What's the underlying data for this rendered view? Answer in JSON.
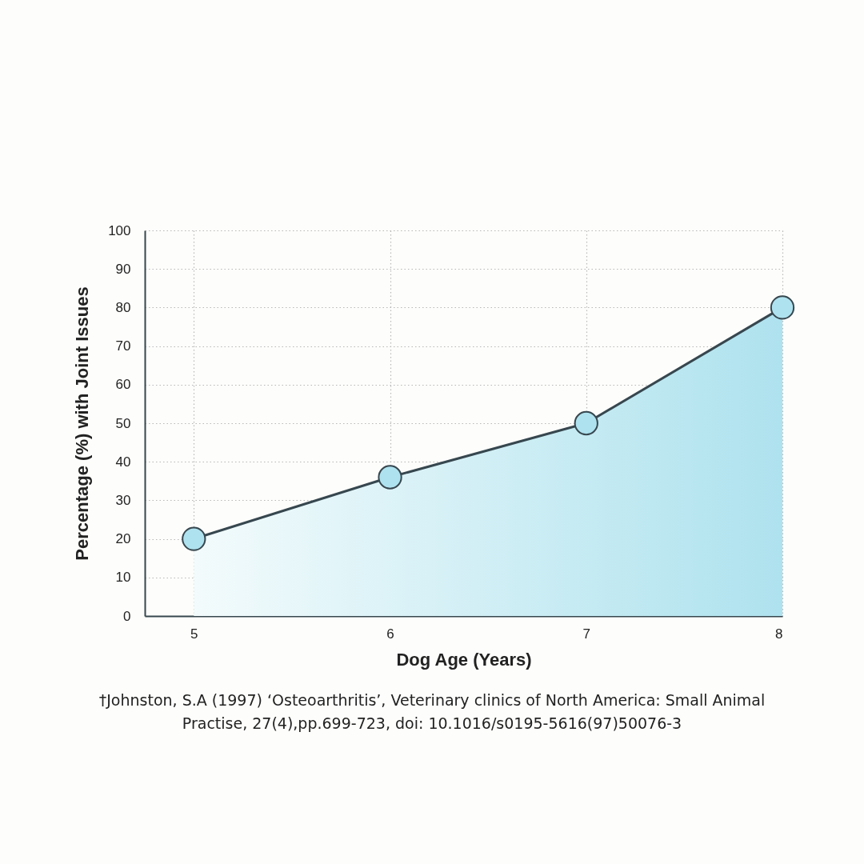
{
  "chart_data": {
    "type": "area",
    "xlabel": "Dog Age (Years)",
    "ylabel": "Percentage (%) with Joint Issues",
    "x": [
      5,
      6,
      7,
      8
    ],
    "series": [
      {
        "color": "#aee2ee",
        "values": [
          20,
          36,
          50,
          80
        ]
      }
    ],
    "xlim": [
      4.75,
      8
    ],
    "xticks": [
      5,
      6,
      7,
      8
    ],
    "ylim": [
      0,
      100
    ],
    "yticks": [
      0,
      10,
      20,
      30,
      40,
      50,
      60,
      70,
      80,
      90,
      100
    ],
    "grid": true,
    "marker": "circle",
    "line_style": "solid",
    "annotations": [
      "†Johnston, S.A (1997) ‘Osteoarthritis’, Veterinary clinics of North America: Small Animal Practise, 27(4),pp.699-723, doi: 10.1016/s0195-5616(97)50076-3"
    ]
  }
}
